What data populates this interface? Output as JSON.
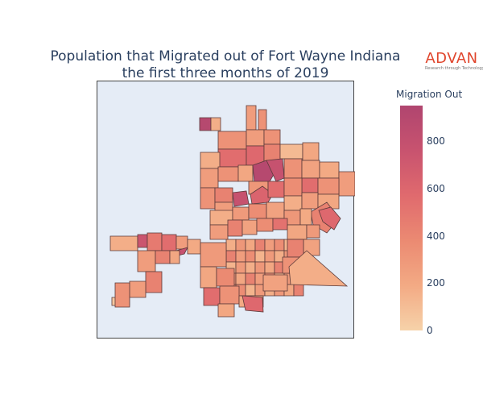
{
  "title_line1": "Population that Migrated out of Fort Wayne Indiana",
  "title_line2": "the first three months of 2019",
  "logo": {
    "word": "ADVAN",
    "tagline": "Research through Technology",
    "color": "#e0452c"
  },
  "colorbar": {
    "title": "Migration Out",
    "ticks": [
      "0",
      "200",
      "400",
      "600",
      "800"
    ],
    "tick_values": [
      0,
      200,
      400,
      600,
      800
    ],
    "range": [
      0,
      950
    ],
    "colors": [
      "#f6d2a9",
      "#f3aa84",
      "#eb8a72",
      "#e06a6e",
      "#c8536f",
      "#b0456f"
    ]
  },
  "map": {
    "type": "choropleth",
    "background": "#e5ecf6",
    "region": "Fort Wayne, Indiana census block groups"
  }
}
